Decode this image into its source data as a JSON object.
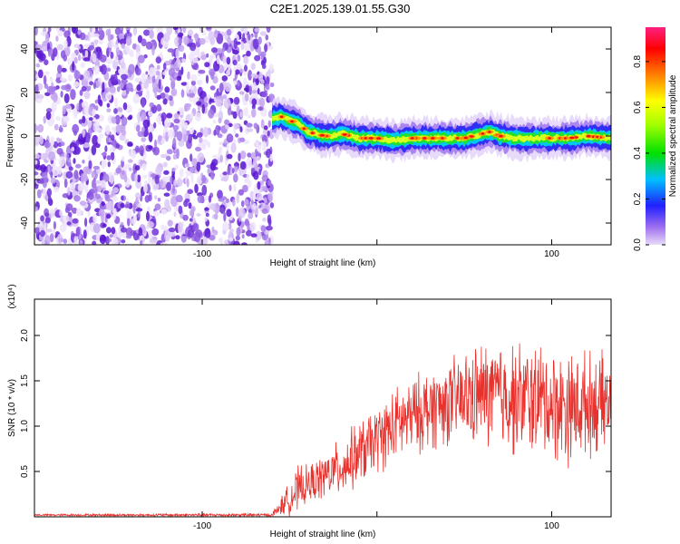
{
  "title": "C2E1.2025.139.01.55.G30",
  "chart_data": [
    {
      "type": "heatmap",
      "xlabel": "Height of straight line (km)",
      "ylabel": "Frequency (Hz)",
      "xlim": [
        -196,
        134
      ],
      "ylim": [
        -50,
        50
      ],
      "xticks": [
        -100,
        0,
        100
      ],
      "xticklabels": [
        "-100",
        "",
        "100"
      ],
      "yticks": [
        -40,
        -20,
        0,
        20,
        40
      ],
      "yticklabels": [
        "-40",
        "-20",
        "0",
        "20",
        "40"
      ],
      "colorbar": {
        "label": "Normalized spectral amplitude",
        "range": [
          0,
          0.95
        ],
        "ticks": [
          0.0,
          0.2,
          0.4,
          0.6,
          0.8
        ],
        "ticklabels": [
          "0.0",
          "0.2",
          "0.4",
          "0.6",
          "0.8"
        ]
      },
      "noise_region_x": [
        -196,
        -60
      ],
      "signal_track": {
        "x": [
          -60,
          -55,
          -50,
          -45,
          -40,
          -35,
          -30,
          -25,
          -20,
          -10,
          0,
          10,
          20,
          30,
          40,
          50,
          55,
          60,
          65,
          70,
          80,
          90,
          100,
          110,
          120,
          134
        ],
        "y": [
          8,
          9,
          7,
          6,
          2,
          1,
          0,
          0,
          1,
          -1,
          -1,
          -2,
          -1,
          -1,
          -1,
          -1,
          0,
          1,
          2,
          0,
          -1,
          -1,
          -1,
          -1,
          0,
          -1
        ]
      }
    },
    {
      "type": "line",
      "xlabel": "Height of straight line (km)",
      "ylabel": "SNR (10 * v/v)",
      "y_multiplier": "(x10⁴)",
      "xlim": [
        -196,
        134
      ],
      "ylim": [
        0,
        2.4
      ],
      "xticks": [
        -100,
        0,
        100
      ],
      "xticklabels": [
        "-100",
        "",
        "100"
      ],
      "yticks": [
        0.5,
        1.0,
        1.5,
        2.0
      ],
      "yticklabels": [
        "0.5",
        "1.0",
        "1.5",
        "2.0"
      ],
      "color": "#e8322d",
      "series_envelope": {
        "x": [
          -196,
          -60,
          -45,
          -40,
          -30,
          -20,
          -10,
          0,
          10,
          20,
          30,
          40,
          50,
          60,
          70,
          80,
          90,
          100,
          110,
          120,
          134
        ],
        "mean": [
          0.02,
          0.02,
          0.3,
          0.35,
          0.45,
          0.55,
          0.7,
          0.85,
          1.0,
          1.1,
          1.2,
          1.25,
          1.3,
          1.35,
          1.35,
          1.3,
          1.3,
          1.25,
          1.2,
          1.25,
          1.25
        ],
        "amplitude": [
          0.01,
          0.02,
          0.25,
          0.2,
          0.25,
          0.3,
          0.35,
          0.35,
          0.4,
          0.4,
          0.45,
          0.45,
          0.5,
          0.55,
          0.6,
          0.6,
          0.6,
          0.6,
          0.6,
          0.55,
          0.5
        ]
      }
    }
  ]
}
